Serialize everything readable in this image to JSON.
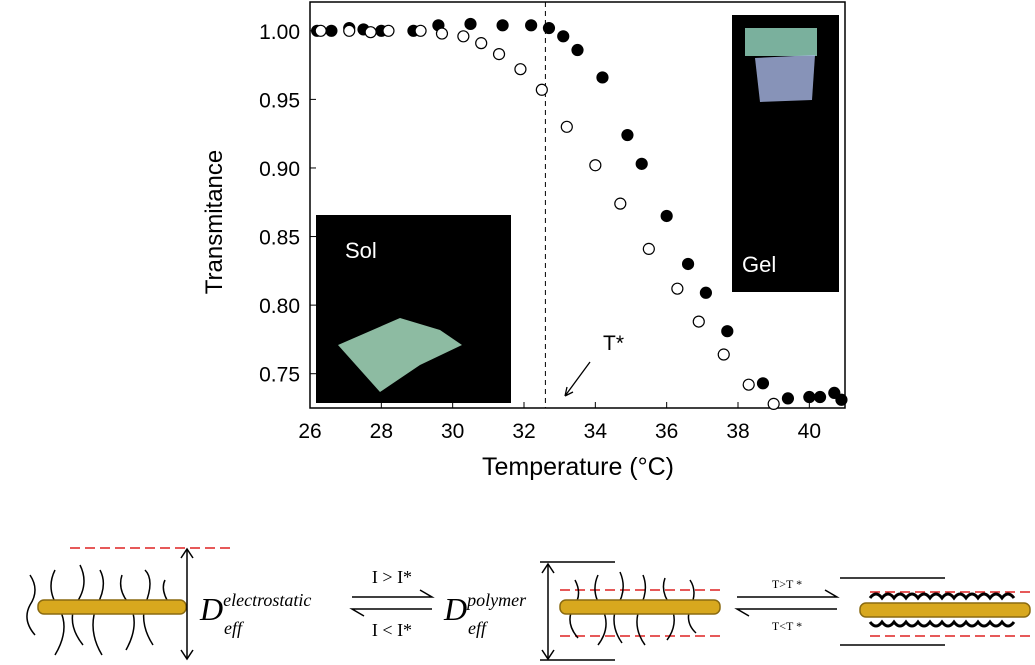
{
  "chart_data": {
    "type": "scatter",
    "ylabel": "Transmitance",
    "xlabel": "Temperature (°C)",
    "xlim": [
      26,
      41
    ],
    "xticks": [
      26,
      28,
      30,
      32,
      34,
      36,
      38,
      40
    ],
    "ylim": [
      0.725,
      1.021
    ],
    "yticks": [
      {
        "value": 0.75,
        "label": "0.75"
      },
      {
        "value": 0.8,
        "label": "0.80"
      },
      {
        "value": 0.85,
        "label": "0.85"
      },
      {
        "value": 0.9,
        "label": "0.90"
      },
      {
        "value": 0.95,
        "label": "0.95"
      },
      {
        "value": 1.0,
        "label": "1.00"
      }
    ],
    "vline": 32.6,
    "annotation": "T*",
    "insets": [
      "Sol",
      "Gel"
    ],
    "series": [
      {
        "color": "#000000",
        "marker": "filled",
        "x": [
          26.2,
          26.6,
          27.1,
          27.5,
          28.0,
          28.9,
          29.6,
          30.5,
          31.4,
          32.2,
          32.7,
          33.1,
          33.5,
          34.2,
          34.9,
          35.3,
          36.0,
          36.6,
          37.1,
          37.7,
          38.7,
          39.4,
          40.0,
          40.3,
          40.7,
          40.9
        ],
        "values": [
          1.0,
          1.0,
          1.002,
          1.001,
          1.0,
          1.0,
          1.004,
          1.005,
          1.004,
          1.004,
          1.002,
          0.996,
          0.986,
          0.966,
          0.924,
          0.903,
          0.865,
          0.83,
          0.809,
          0.781,
          0.743,
          0.732,
          0.733,
          0.733,
          0.736,
          0.731
        ]
      },
      {
        "color": "#000000",
        "marker": "open",
        "x": [
          26.3,
          27.1,
          27.7,
          28.2,
          29.1,
          29.7,
          30.3,
          30.8,
          31.3,
          31.9,
          32.5,
          33.2,
          34.0,
          34.7,
          35.5,
          36.3,
          36.9,
          37.6,
          38.3,
          39.0
        ],
        "values": [
          1.0,
          1.0,
          0.999,
          1.0,
          1.0,
          0.998,
          0.996,
          0.991,
          0.983,
          0.972,
          0.957,
          0.93,
          0.902,
          0.874,
          0.841,
          0.812,
          0.788,
          0.764,
          0.742,
          0.728
        ]
      }
    ]
  },
  "diagram": {
    "d1": {
      "main": "D",
      "sub": "eff",
      "sup": "electrostatic"
    },
    "eq1": {
      "top": "I > I*",
      "bottom": "I < I*"
    },
    "d2": {
      "main": "D",
      "sub": "eff",
      "sup": "polymer"
    },
    "eq2": {
      "top": "T>T *",
      "bottom": "T<T *"
    }
  }
}
